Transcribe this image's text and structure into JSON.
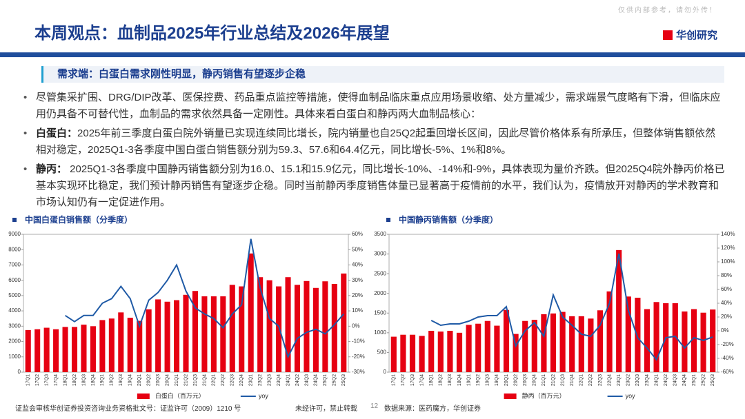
{
  "header": {
    "title": "本周观点：血制品2025年行业总结及2026年展望",
    "brand": "华创研究",
    "watermark": "仅供内部参考，请勿外传！"
  },
  "subheader": "需求端：白蛋白需求刚性明显，静丙销售有望逐步企稳",
  "bullets": [
    {
      "text": "尽管集采扩围、DRG/DIP改革、医保控费、药品重点监控等措施，使得血制品临床重点应用场景收缩、处方量减少，需求端景气度略有下滑，但临床应用仍具备不可替代性，血制品的需求依然具备一定刚性。具体来看白蛋白和静丙两大血制品核心："
    },
    {
      "lead": "白蛋白：",
      "text": "2025年前三季度白蛋白院外销量已实现连续同比增长，院内销量也自25Q2起重回增长区间，因此尽管价格体系有所承压，但整体销售额依然相对稳定，2025Q1-3各季度中国白蛋白销售额分别为59.3、57.6和64.4亿元，同比增长-5%、1%和8%。"
    },
    {
      "lead": "静丙：",
      "text": " 2025Q1-3各季度中国静丙销售额分别为16.0、15.1和15.9亿元，同比增长-10%、-14%和-9%，具体表现为量价齐跌。但2025Q4院外静丙价格已基本实现环比稳定，我们预计静丙销售有望逐步企稳。同时当前静丙季度销售体量已显著高于疫情前的水平，我们认为，疫情放开对静丙的学术教育和市场认知仍有一定促进作用。"
    }
  ],
  "chart_data": [
    {
      "type": "bar_line",
      "title": "中国白蛋白销售额（分季度）",
      "categories": [
        "17Q1",
        "17Q2",
        "17Q3",
        "17Q4",
        "18Q1",
        "18Q2",
        "18Q3",
        "18Q4",
        "19Q1",
        "19Q2",
        "19Q3",
        "19Q4",
        "20Q1",
        "20Q2",
        "20Q3",
        "20Q4",
        "21Q1",
        "21Q2",
        "21Q3",
        "21Q4",
        "22Q1",
        "22Q2",
        "22Q3",
        "22Q4",
        "23Q1",
        "23Q2",
        "23Q3",
        "23Q4",
        "24Q1",
        "24Q2",
        "24Q3",
        "24Q4",
        "25Q1",
        "25Q2",
        "25Q3"
      ],
      "series": [
        {
          "name": "白蛋白（百万元）",
          "color": "#e60012",
          "values": [
            2750,
            2800,
            2900,
            2800,
            2950,
            2950,
            3100,
            3000,
            3400,
            3500,
            3900,
            3550,
            3350,
            4100,
            4750,
            4600,
            4700,
            5050,
            5300,
            4950,
            4950,
            4950,
            5700,
            5600,
            7750,
            6200,
            6000,
            5600,
            6200,
            5700,
            5950,
            5500,
            5930,
            5760,
            6440
          ]
        },
        {
          "name": "yoy",
          "color": "#1f5aa6",
          "axis": "y2",
          "values": [
            null,
            null,
            null,
            null,
            7,
            3,
            7,
            7,
            15,
            18,
            26,
            18,
            0,
            17,
            22,
            30,
            40,
            23,
            12,
            8,
            5,
            -1,
            8,
            14,
            57,
            25,
            5,
            0,
            -20,
            -8,
            -4,
            -2,
            -5,
            1,
            8
          ]
        }
      ],
      "ylim": [
        0,
        9000
      ],
      "yticks": [
        0,
        1000,
        2000,
        3000,
        4000,
        5000,
        6000,
        7000,
        8000,
        9000
      ],
      "y2lim": [
        -30,
        60
      ],
      "y2ticks": [
        {
          "value": -30,
          "label": "-30%"
        },
        {
          "value": -20,
          "label": "-20%"
        },
        {
          "value": -10,
          "label": "-10%"
        },
        {
          "value": 0,
          "label": "0%"
        },
        {
          "value": 10,
          "label": "10%"
        },
        {
          "value": 20,
          "label": "20%"
        },
        {
          "value": 30,
          "label": "30%"
        },
        {
          "value": 40,
          "label": "40%"
        },
        {
          "value": 50,
          "label": "50%"
        },
        {
          "value": 60,
          "label": "60%"
        }
      ]
    },
    {
      "type": "bar_line",
      "title": "中国静丙销售额（分季度）",
      "categories": [
        "17Q1",
        "17Q2",
        "17Q3",
        "17Q4",
        "18Q1",
        "18Q2",
        "18Q3",
        "18Q4",
        "19Q1",
        "19Q2",
        "19Q3",
        "19Q4",
        "20Q1",
        "20Q2",
        "20Q3",
        "20Q4",
        "21Q1",
        "21Q2",
        "21Q3",
        "21Q4",
        "22Q1",
        "22Q2",
        "22Q3",
        "22Q4",
        "23Q1",
        "23Q2",
        "23Q3",
        "23Q4",
        "24Q1",
        "24Q2",
        "24Q3",
        "24Q4",
        "25Q1",
        "25Q2",
        "25Q3"
      ],
      "series": [
        {
          "name": "静丙（百万元）",
          "color": "#e60012",
          "values": [
            900,
            950,
            950,
            920,
            1050,
            1030,
            1050,
            1000,
            1200,
            1230,
            1300,
            1180,
            1580,
            970,
            1300,
            1330,
            1470,
            1490,
            1530,
            1420,
            1420,
            1360,
            1570,
            2050,
            3100,
            1920,
            1890,
            1600,
            1780,
            1750,
            1750,
            1540,
            1600,
            1510,
            1590
          ]
        },
        {
          "name": "yoy",
          "color": "#1f5aa6",
          "axis": "y2",
          "values": [
            null,
            null,
            null,
            null,
            15,
            8,
            10,
            10,
            14,
            20,
            22,
            22,
            35,
            -22,
            0,
            12,
            -8,
            52,
            20,
            8,
            -5,
            -8,
            8,
            40,
            112,
            30,
            -10,
            -25,
            -42,
            -10,
            -8,
            -25,
            -10,
            -14,
            -9
          ]
        }
      ],
      "ylim": [
        0,
        3500
      ],
      "yticks": [
        0,
        500,
        1000,
        1500,
        2000,
        2500,
        3000,
        3500
      ],
      "y2lim": [
        -60,
        140
      ],
      "y2ticks": [
        {
          "value": -60,
          "label": "-60%"
        },
        {
          "value": -40,
          "label": "-40%"
        },
        {
          "value": -20,
          "label": "-20%"
        },
        {
          "value": 0,
          "label": "0%"
        },
        {
          "value": 20,
          "label": "20%"
        },
        {
          "value": 40,
          "label": "40%"
        },
        {
          "value": 60,
          "label": "60%"
        },
        {
          "value": 80,
          "label": "80%"
        },
        {
          "value": 100,
          "label": "100%"
        },
        {
          "value": 120,
          "label": "120%"
        },
        {
          "value": 140,
          "label": "140%"
        }
      ]
    }
  ],
  "footer": {
    "license": "证监会审核华创证券投资咨询业务资格批文号：证监许可（2009）1210 号",
    "notice": "未经许可，禁止转载",
    "page": "12",
    "source": "数据来源：医药魔方，华创证券"
  }
}
